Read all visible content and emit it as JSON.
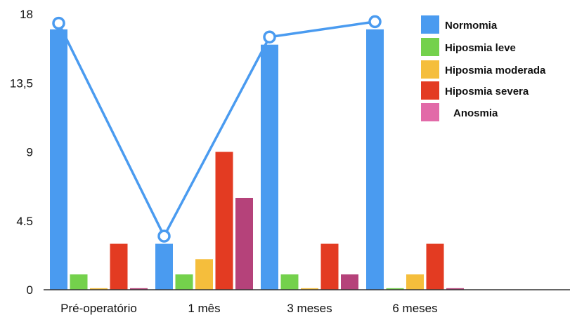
{
  "chart_data": {
    "type": "bar",
    "categories": [
      "Pré-operatório",
      "1 mês",
      "3 meses",
      "6 meses"
    ],
    "ylim": [
      0,
      18
    ],
    "y_ticks": [
      {
        "value": 0,
        "label": "0"
      },
      {
        "value": 4.5,
        "label": "4.5"
      },
      {
        "value": 9,
        "label": "9"
      },
      {
        "value": 13.5,
        "label": "13,5"
      },
      {
        "value": 18,
        "label": "18"
      }
    ],
    "grid": false,
    "legend_position": "top-right",
    "series": [
      {
        "name": "Normomia",
        "color": "#4A9BF0",
        "values": [
          17,
          3,
          16,
          17
        ]
      },
      {
        "name": "Hiposmia leve",
        "color": "#74D14C",
        "values": [
          1,
          1,
          1,
          0.1
        ]
      },
      {
        "name": "Hiposmia moderada",
        "color": "#F5BE3C",
        "values": [
          0.1,
          2,
          0.1,
          1
        ]
      },
      {
        "name": "Hiposmia severa",
        "color": "#E33B22",
        "values": [
          3,
          9,
          3,
          3
        ]
      },
      {
        "name": "Anosmia",
        "color": "#B5427A",
        "legend_color": "#E26AA8",
        "values": [
          0.1,
          6,
          1,
          0.1
        ]
      }
    ],
    "line_series": {
      "based_on": "Normomia",
      "color": "#4A9BF0",
      "values": [
        17.4,
        3.5,
        16.5,
        17.5
      ]
    }
  }
}
